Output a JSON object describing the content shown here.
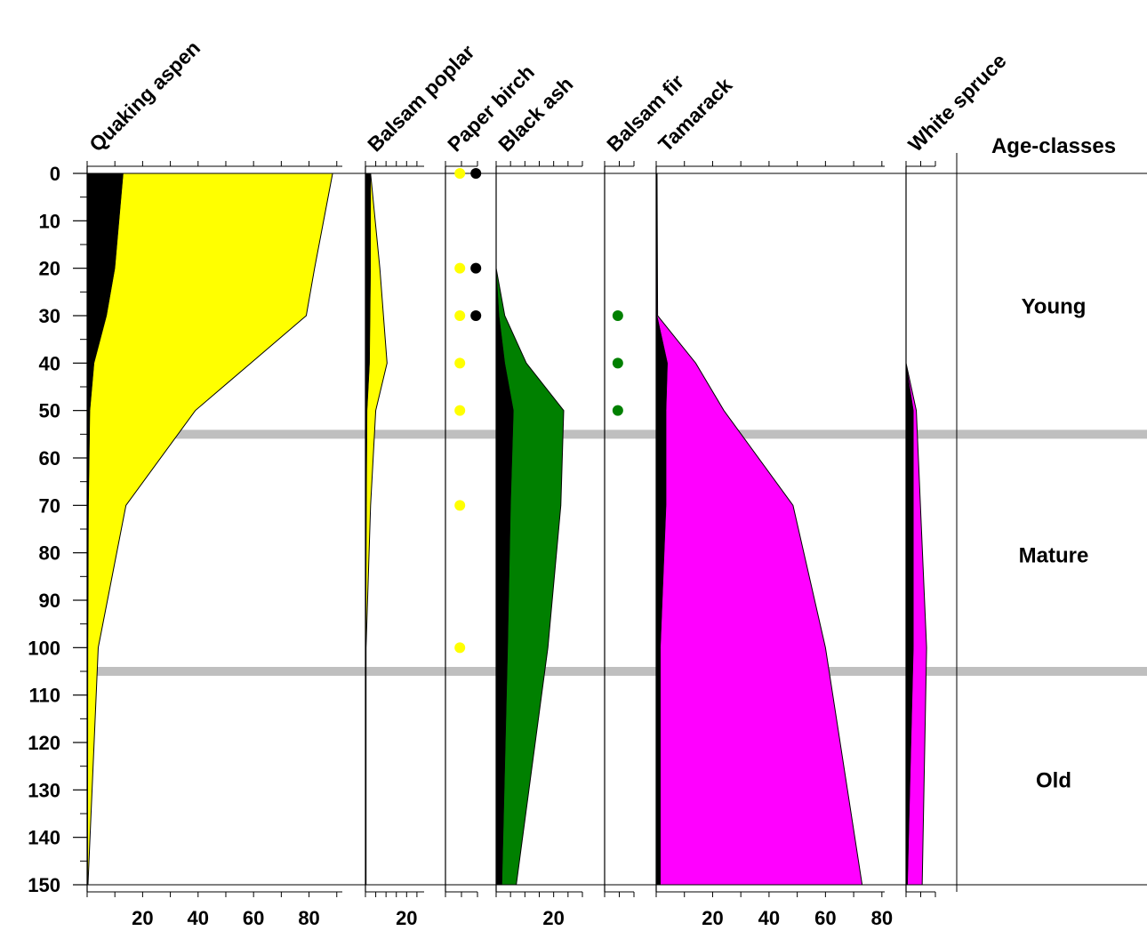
{
  "chart_data": {
    "type": "area",
    "y_axis": {
      "ticks": [
        0,
        10,
        20,
        30,
        40,
        50,
        60,
        70,
        80,
        90,
        100,
        110,
        120,
        130,
        140,
        150
      ],
      "ylim": [
        0,
        150
      ],
      "reversed": true
    },
    "panels": [
      {
        "name": "Quaking aspen",
        "xlim": [
          0,
          92
        ],
        "x_tick_labels": [
          "20",
          "40",
          "60",
          "80"
        ],
        "x_tick_values": [
          20,
          40,
          60,
          80
        ],
        "total_color": "#ffff00",
        "secondary_color": "#000000",
        "profile": [
          {
            "y": 0,
            "total": 88.5,
            "secondary": 13
          },
          {
            "y": 20,
            "total": 82,
            "secondary": 10
          },
          {
            "y": 30,
            "total": 79,
            "secondary": 7
          },
          {
            "y": 40,
            "total": 59,
            "secondary": 2.5
          },
          {
            "y": 50,
            "total": 39,
            "secondary": 1
          },
          {
            "y": 70,
            "total": 14,
            "secondary": 0.5
          },
          {
            "y": 100,
            "total": 4,
            "secondary": 0.3
          },
          {
            "y": 150,
            "total": 0.3,
            "secondary": 0.2
          }
        ]
      },
      {
        "name": "Balsam poplar",
        "xlim": [
          0,
          28.5
        ],
        "x_tick_labels": [
          "20"
        ],
        "x_tick_values": [
          20
        ],
        "total_color": "#ffff00",
        "secondary_color": "#000000",
        "profile": [
          {
            "y": 0,
            "total": 2.5,
            "secondary": 2.5
          },
          {
            "y": 20,
            "total": 7,
            "secondary": 2.5
          },
          {
            "y": 40,
            "total": 10.5,
            "secondary": 2
          },
          {
            "y": 50,
            "total": 5,
            "secondary": 0.8
          },
          {
            "y": 70,
            "total": 2.5,
            "secondary": 0.5
          },
          {
            "y": 100,
            "total": 0.3,
            "secondary": 0.2
          },
          {
            "y": 150,
            "total": 0.3,
            "secondary": 0.2
          }
        ]
      },
      {
        "name": "Paper birch",
        "xlim": [
          0,
          10
        ],
        "x_tick_labels": [],
        "x_tick_values": [],
        "points": [
          {
            "y": 0,
            "x": 4.5,
            "color": "#ffff00"
          },
          {
            "y": 20,
            "x": 4.5,
            "color": "#ffff00"
          },
          {
            "y": 30,
            "x": 4.5,
            "color": "#ffff00"
          },
          {
            "y": 40,
            "x": 4.5,
            "color": "#ffff00"
          },
          {
            "y": 50,
            "x": 4.5,
            "color": "#ffff00"
          },
          {
            "y": 70,
            "x": 4.5,
            "color": "#ffff00"
          },
          {
            "y": 100,
            "x": 4.5,
            "color": "#ffff00"
          },
          {
            "y": 0,
            "x": 9.5,
            "color": "#000000"
          },
          {
            "y": 20,
            "x": 9.5,
            "color": "#000000"
          },
          {
            "y": 30,
            "x": 9.5,
            "color": "#000000"
          }
        ]
      },
      {
        "name": "Black ash",
        "xlim": [
          0,
          30
        ],
        "x_tick_labels": [
          "20"
        ],
        "x_tick_values": [
          20
        ],
        "total_color": "#008000",
        "secondary_color": "#000000",
        "profile": [
          {
            "y": 20,
            "total": 0,
            "secondary": 0
          },
          {
            "y": 30,
            "total": 3,
            "secondary": 1
          },
          {
            "y": 40,
            "total": 10.5,
            "secondary": 3
          },
          {
            "y": 50,
            "total": 23.5,
            "secondary": 6
          },
          {
            "y": 70,
            "total": 22.5,
            "secondary": 5
          },
          {
            "y": 100,
            "total": 18,
            "secondary": 4
          },
          {
            "y": 150,
            "total": 7,
            "secondary": 2
          }
        ]
      },
      {
        "name": "Balsam fir",
        "xlim": [
          0,
          10
        ],
        "x_tick_labels": [],
        "x_tick_values": [],
        "points": [
          {
            "y": 30,
            "x": 4.5,
            "color": "#008000"
          },
          {
            "y": 40,
            "x": 4.5,
            "color": "#008000"
          },
          {
            "y": 50,
            "x": 4.5,
            "color": "#008000"
          }
        ]
      },
      {
        "name": "Tamarack",
        "xlim": [
          0,
          81
        ],
        "x_tick_labels": [
          "20",
          "40",
          "60",
          "80"
        ],
        "x_tick_values": [
          20,
          40,
          60,
          80
        ],
        "total_color": "#ff00ff",
        "secondary_color": "#000000",
        "profile": [
          {
            "y": 0,
            "total": 0.3,
            "secondary": 0.2
          },
          {
            "y": 30,
            "total": 0.5,
            "secondary": 0.3
          },
          {
            "y": 40,
            "total": 14,
            "secondary": 4
          },
          {
            "y": 50,
            "total": 24,
            "secondary": 3.5
          },
          {
            "y": 70,
            "total": 48.5,
            "secondary": 3.5
          },
          {
            "y": 100,
            "total": 60,
            "secondary": 1.5
          },
          {
            "y": 150,
            "total": 73,
            "secondary": 1.5
          }
        ]
      },
      {
        "name": "White spruce",
        "xlim": [
          0,
          10
        ],
        "x_tick_labels": [],
        "x_tick_values": [],
        "total_color": "#ff00ff",
        "secondary_color": "#000000",
        "profile": [
          {
            "y": 40,
            "total": 0,
            "secondary": 0
          },
          {
            "y": 50,
            "total": 3.5,
            "secondary": 2.5
          },
          {
            "y": 100,
            "total": 7,
            "secondary": 2.5
          },
          {
            "y": 150,
            "total": 5.5,
            "secondary": 0.5
          }
        ]
      }
    ],
    "age_classes": {
      "title": "Age-classes",
      "labels": [
        {
          "name": "Young",
          "y": 28
        },
        {
          "name": "Mature",
          "y": 80.5
        },
        {
          "name": "Old",
          "y": 128
        }
      ],
      "boundaries": [
        55,
        105
      ],
      "boundary_color": "#bfbfbf"
    }
  }
}
